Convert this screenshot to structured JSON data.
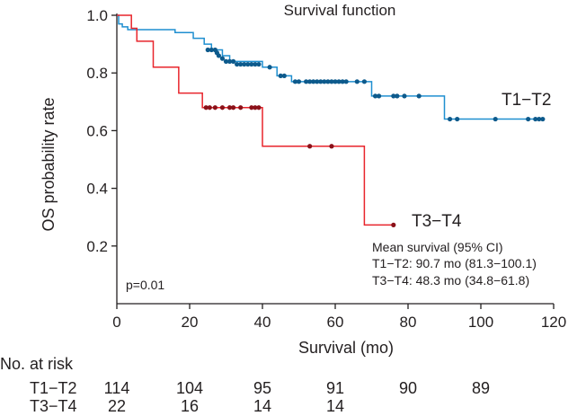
{
  "chart_data": {
    "type": "line",
    "title": "Survival function",
    "xlabel": "Survival (mo)",
    "ylabel": "OS probability rate",
    "xlim": [
      0,
      120
    ],
    "ylim": [
      0,
      1.0
    ],
    "x_ticks": [
      0,
      20,
      40,
      60,
      80,
      100,
      120
    ],
    "y_ticks": [
      0.2,
      0.4,
      0.6,
      0.8,
      1.0
    ],
    "y_tick_labels": [
      "0.2",
      "0.4",
      "0.6",
      "0.8",
      "1.0"
    ],
    "p_value_label": "p=0.01",
    "annotation": {
      "heading": "Mean survival (95% CI)",
      "lines": [
        "T1−T2: 90.7 mo (81.3−100.1)",
        "T3−T4: 48.3 mo (34.8−61.8)"
      ]
    },
    "series": [
      {
        "name": "T1−T2",
        "color": "#1f8fd0",
        "marker_color": "#0d5a8c",
        "steps": [
          [
            0,
            1.0
          ],
          [
            0.5,
            0.97
          ],
          [
            1.5,
            0.96
          ],
          [
            3,
            0.95
          ],
          [
            16,
            0.94
          ],
          [
            21,
            0.92
          ],
          [
            24,
            0.9
          ],
          [
            26,
            0.88
          ],
          [
            29,
            0.86
          ],
          [
            31,
            0.84
          ],
          [
            40,
            0.82
          ],
          [
            44,
            0.79
          ],
          [
            48,
            0.77
          ],
          [
            70,
            0.72
          ],
          [
            90,
            0.64
          ],
          [
            117,
            0.64
          ]
        ],
        "censored": [
          [
            25,
            0.88
          ],
          [
            26,
            0.88
          ],
          [
            27,
            0.88
          ],
          [
            27.5,
            0.87
          ],
          [
            28,
            0.86
          ],
          [
            29,
            0.85
          ],
          [
            30,
            0.84
          ],
          [
            31,
            0.84
          ],
          [
            32,
            0.84
          ],
          [
            33,
            0.83
          ],
          [
            34,
            0.83
          ],
          [
            35,
            0.83
          ],
          [
            36,
            0.83
          ],
          [
            37,
            0.83
          ],
          [
            38,
            0.83
          ],
          [
            39,
            0.83
          ],
          [
            42,
            0.82
          ],
          [
            45,
            0.79
          ],
          [
            46,
            0.79
          ],
          [
            49,
            0.77
          ],
          [
            50,
            0.77
          ],
          [
            52,
            0.77
          ],
          [
            53,
            0.77
          ],
          [
            54,
            0.77
          ],
          [
            55,
            0.77
          ],
          [
            56,
            0.77
          ],
          [
            57,
            0.77
          ],
          [
            58,
            0.77
          ],
          [
            59,
            0.77
          ],
          [
            60,
            0.77
          ],
          [
            61,
            0.77
          ],
          [
            62,
            0.77
          ],
          [
            63,
            0.77
          ],
          [
            66,
            0.77
          ],
          [
            68,
            0.77
          ],
          [
            71,
            0.72
          ],
          [
            72,
            0.72
          ],
          [
            76,
            0.72
          ],
          [
            77,
            0.72
          ],
          [
            79,
            0.72
          ],
          [
            83,
            0.72
          ],
          [
            91.5,
            0.64
          ],
          [
            93.5,
            0.64
          ],
          [
            104,
            0.64
          ],
          [
            113,
            0.64
          ],
          [
            115,
            0.64
          ],
          [
            116,
            0.64
          ],
          [
            117,
            0.64
          ]
        ]
      },
      {
        "name": "T3−T4",
        "color": "#e8252c",
        "marker_color": "#8b1119",
        "steps": [
          [
            0,
            1.0
          ],
          [
            4,
            0.955
          ],
          [
            5.5,
            0.91
          ],
          [
            10,
            0.82
          ],
          [
            17,
            0.73
          ],
          [
            23.5,
            0.68
          ],
          [
            40,
            0.546
          ],
          [
            68,
            0.273
          ],
          [
            76,
            0.273
          ]
        ],
        "censored": [
          [
            24.5,
            0.68
          ],
          [
            25.5,
            0.68
          ],
          [
            27,
            0.68
          ],
          [
            29,
            0.68
          ],
          [
            31,
            0.68
          ],
          [
            32,
            0.68
          ],
          [
            34,
            0.68
          ],
          [
            37,
            0.68
          ],
          [
            38,
            0.68
          ],
          [
            39,
            0.68
          ],
          [
            53,
            0.546
          ],
          [
            59,
            0.546
          ],
          [
            76,
            0.273
          ]
        ]
      }
    ],
    "at_risk": {
      "title": "No. at risk",
      "times": [
        0,
        20,
        40,
        60,
        80,
        100
      ],
      "rows": [
        {
          "name": "T1−T2",
          "counts": [
            "114",
            "104",
            "95",
            "91",
            "90",
            "89"
          ]
        },
        {
          "name": "T3−T4",
          "counts": [
            "22",
            "16",
            "14",
            "14"
          ]
        }
      ]
    }
  }
}
